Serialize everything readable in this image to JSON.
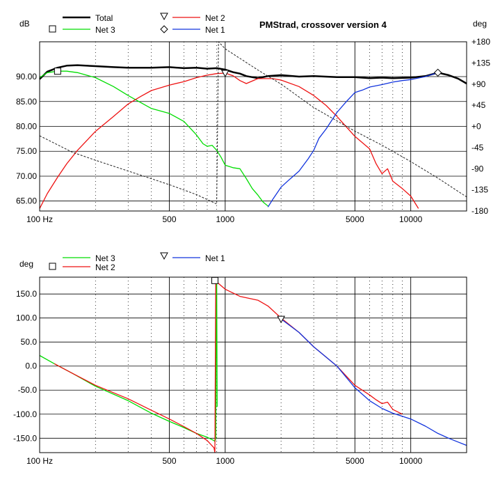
{
  "chart_data": [
    {
      "type": "line",
      "title": "PMStrad, crossover version 4",
      "ylabel": "dB",
      "y2label": "deg",
      "xscale": "log",
      "xlim": [
        100,
        20000
      ],
      "ylim": [
        63,
        97
      ],
      "y2lim": [
        -180,
        180
      ],
      "x_tick_labels": [
        "100 Hz",
        "500",
        "1000",
        "5000",
        "10000"
      ],
      "x_tick_values": [
        100,
        500,
        1000,
        5000,
        10000
      ],
      "y_ticks": [
        65,
        70,
        75,
        80,
        85,
        90
      ],
      "y_tick_labels": [
        "65.00",
        "70.00",
        "75.00",
        "80.00",
        "85.00",
        "90.00"
      ],
      "y2_ticks": [
        -180,
        -135,
        -90,
        -45,
        0,
        45,
        90,
        135,
        180
      ],
      "y2_tick_labels": [
        "-180",
        "-135",
        "-90",
        "-45",
        "+0",
        "+45",
        "+90",
        "+135",
        "+180"
      ],
      "grid": true,
      "legend": [
        {
          "name": "Total",
          "marker": "none",
          "color": "#000000"
        },
        {
          "name": "Net 3",
          "marker": "square",
          "color": "#00dd00"
        },
        {
          "name": "Net 2",
          "marker": "triangle-down",
          "color": "#ee1111"
        },
        {
          "name": "Net 1",
          "marker": "diamond",
          "color": "#1133dd"
        }
      ],
      "series": [
        {
          "name": "Total",
          "color": "#000000",
          "axis": "left",
          "width": 2.5,
          "x": [
            100,
            110,
            125,
            140,
            160,
            200,
            250,
            300,
            400,
            500,
            600,
            700,
            800,
            900,
            1000,
            1100,
            1200,
            1300,
            1500,
            1700,
            2000,
            2500,
            3000,
            4000,
            5000,
            6000,
            7000,
            8000,
            10000,
            12000,
            14000,
            16000,
            18000,
            20000
          ],
          "y": [
            89.5,
            91.0,
            91.8,
            92.2,
            92.3,
            92.1,
            91.9,
            91.8,
            91.8,
            91.9,
            91.7,
            91.8,
            91.6,
            91.7,
            91.4,
            90.9,
            90.6,
            90.1,
            89.7,
            90.1,
            90.3,
            90.0,
            90.1,
            89.9,
            89.9,
            89.7,
            89.8,
            89.7,
            89.8,
            90.1,
            90.8,
            90.3,
            89.6,
            88.6
          ]
        },
        {
          "name": "Net 3",
          "color": "#00dd00",
          "axis": "left",
          "width": 1.3,
          "x": [
            100,
            110,
            125,
            140,
            160,
            200,
            250,
            300,
            350,
            400,
            500,
            600,
            650,
            700,
            760,
            800,
            850,
            900,
            950,
            1000,
            1100,
            1200,
            1300,
            1400,
            1500,
            1600,
            1700
          ],
          "y": [
            89.8,
            90.8,
            91.1,
            91.1,
            90.8,
            89.8,
            88.0,
            86.2,
            84.8,
            83.6,
            82.6,
            81.0,
            79.6,
            78.3,
            76.5,
            76.0,
            76.2,
            75.2,
            73.8,
            72.2,
            71.7,
            71.5,
            69.5,
            67.5,
            66.2,
            64.8,
            64.0
          ]
        },
        {
          "name": "Net 2",
          "color": "#ee1111",
          "axis": "left",
          "width": 1.3,
          "x": [
            100,
            110,
            125,
            140,
            160,
            200,
            250,
            300,
            350,
            400,
            500,
            600,
            700,
            800,
            900,
            1000,
            1100,
            1200,
            1300,
            1500,
            1800,
            2000,
            2500,
            3000,
            3500,
            4000,
            5000,
            6000,
            6500,
            7000,
            7500,
            8000,
            9000,
            10000,
            11000
          ],
          "y": [
            63.5,
            66.5,
            69.8,
            72.5,
            75.2,
            79.0,
            82.0,
            84.5,
            86.0,
            87.2,
            88.3,
            89.0,
            89.8,
            90.3,
            90.6,
            90.7,
            90.2,
            89.2,
            88.6,
            89.6,
            89.6,
            89.3,
            88.0,
            86.2,
            84.2,
            82.0,
            78.0,
            75.5,
            72.5,
            70.5,
            71.5,
            69.0,
            67.5,
            66.0,
            63.5
          ]
        },
        {
          "name": "Net 1",
          "color": "#1133dd",
          "axis": "left",
          "width": 1.3,
          "x": [
            1700,
            1800,
            2000,
            2200,
            2500,
            2800,
            3000,
            3200,
            3500,
            4000,
            4500,
            5000,
            5500,
            6000,
            7000,
            8000,
            9000,
            10000,
            12000,
            14000
          ],
          "y": [
            63.8,
            65.3,
            67.8,
            69.2,
            71.0,
            73.5,
            75.2,
            77.6,
            79.5,
            82.8,
            85.0,
            86.8,
            87.3,
            87.9,
            88.4,
            88.9,
            89.2,
            89.4,
            90.0,
            90.8
          ]
        },
        {
          "name": "",
          "color": "#222222",
          "axis": "right",
          "width": 1.0,
          "dash": "3,2",
          "x": [
            100,
            150,
            200,
            300,
            500,
            700,
            900,
            920,
            1000,
            1500,
            2000,
            3000,
            5000,
            7000,
            10000,
            14000,
            20000
          ],
          "y": [
            -20,
            -55,
            -72,
            -95,
            -124,
            -145,
            -165,
            180,
            165,
            120,
            90,
            40,
            -10,
            -40,
            -75,
            -110,
            -150
          ]
        }
      ],
      "markers": [
        {
          "series": "Net 3",
          "shape": "square",
          "x": 125,
          "y": 91.1
        },
        {
          "series": "Net 2",
          "shape": "triangle-down",
          "x": 1000,
          "y": 90.7
        },
        {
          "series": "Net 1",
          "shape": "diamond",
          "x": 14000,
          "y": 90.8
        }
      ]
    },
    {
      "type": "line",
      "ylabel": "deg",
      "xscale": "log",
      "xlim": [
        100,
        20000
      ],
      "ylim": [
        -180,
        185
      ],
      "x_tick_labels": [
        "100 Hz",
        "500",
        "1000",
        "5000",
        "10000"
      ],
      "x_tick_values": [
        100,
        500,
        1000,
        5000,
        10000
      ],
      "y_ticks": [
        -150,
        -100,
        -50,
        0,
        50,
        100,
        150
      ],
      "y_tick_labels": [
        "-150.0",
        "-100.0",
        "-50.0",
        "0.0",
        "50.0",
        "100.0",
        "150.0"
      ],
      "grid": true,
      "legend": [
        {
          "name": "Net 3",
          "marker": "none",
          "color": "#00dd00"
        },
        {
          "name": "Net 2",
          "marker": "square",
          "color": "#ee1111"
        },
        {
          "name": "Net 1",
          "marker": "triangle-down",
          "color": "#1133dd"
        }
      ],
      "series": [
        {
          "name": "Net 3",
          "color": "#00dd00",
          "width": 1.3,
          "x": [
            100,
            120,
            150,
            200,
            300,
            400,
            500,
            600,
            700,
            800,
            870,
            880,
            890,
            895,
            900,
            905
          ],
          "y": [
            22,
            5,
            -15,
            -42,
            -72,
            -98,
            -115,
            -128,
            -140,
            -148,
            -155,
            -157,
            -150,
            180,
            175,
            -85
          ]
        },
        {
          "name": "Net 2",
          "color": "#ee1111",
          "width": 1.3,
          "x": [
            120,
            150,
            200,
            300,
            400,
            500,
            600,
            700,
            800,
            870,
            880,
            890,
            895,
            900,
            1000,
            1200,
            1500,
            1700,
            2000,
            2500,
            3000,
            4000,
            5000,
            6000,
            6500,
            7000,
            7500,
            8000,
            9000
          ],
          "y": [
            5,
            -15,
            -40,
            -68,
            -92,
            -110,
            -126,
            -140,
            -155,
            -170,
            -180,
            178,
            175,
            175,
            160,
            145,
            137,
            125,
            100,
            70,
            40,
            0,
            -40,
            -60,
            -70,
            -78,
            -75,
            -90,
            -100
          ]
        },
        {
          "name": "Net 1",
          "color": "#1133dd",
          "width": 1.3,
          "x": [
            2000,
            2500,
            3000,
            4000,
            5000,
            6000,
            7000,
            8000,
            10000,
            12000,
            14000,
            16000,
            18000,
            20000
          ],
          "y": [
            98,
            70,
            40,
            0,
            -45,
            -72,
            -88,
            -98,
            -110,
            -125,
            -140,
            -150,
            -158,
            -165
          ]
        }
      ],
      "markers": [
        {
          "series": "Net 2",
          "shape": "square",
          "x": 880,
          "y": 178
        },
        {
          "series": "Net 1",
          "shape": "triangle-down",
          "x": 2000,
          "y": 98
        }
      ]
    }
  ]
}
